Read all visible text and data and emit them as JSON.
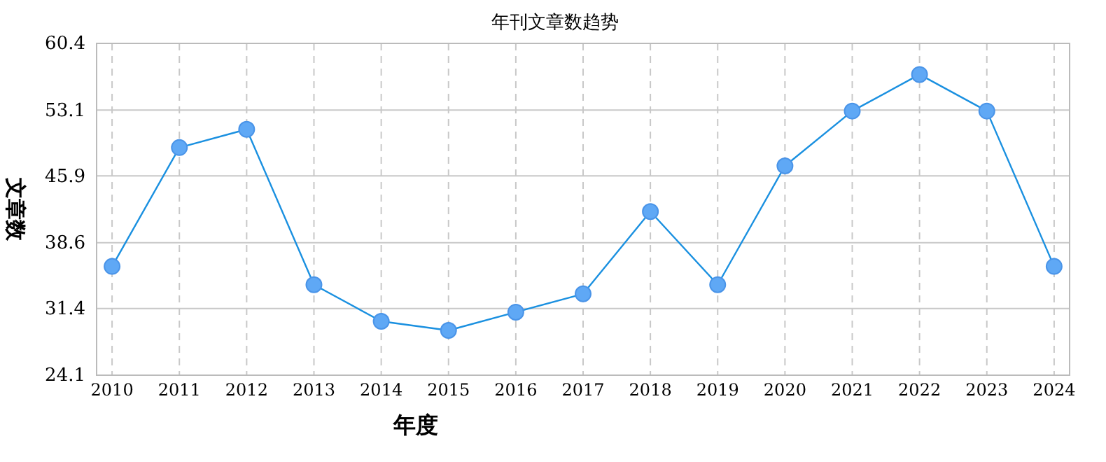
{
  "chart_data": {
    "type": "line",
    "title": "年刊文章数趋势",
    "xlabel": "年度",
    "ylabel": "文章数",
    "categories": [
      "2010",
      "2011",
      "2012",
      "2013",
      "2014",
      "2015",
      "2016",
      "2017",
      "2018",
      "2019",
      "2020",
      "2021",
      "2022",
      "2023",
      "2024"
    ],
    "series": [
      {
        "color": "#1a90e0",
        "values": [
          36,
          49,
          51,
          34,
          30,
          29,
          31,
          33,
          42,
          34,
          47,
          53,
          57,
          53,
          36
        ]
      }
    ],
    "ylim": [
      24.1,
      60.4
    ],
    "yticks": [
      24.1,
      31.4,
      38.6,
      45.9,
      53.1,
      60.4
    ],
    "grid": true,
    "marker": "circle",
    "line_style": "solid"
  }
}
